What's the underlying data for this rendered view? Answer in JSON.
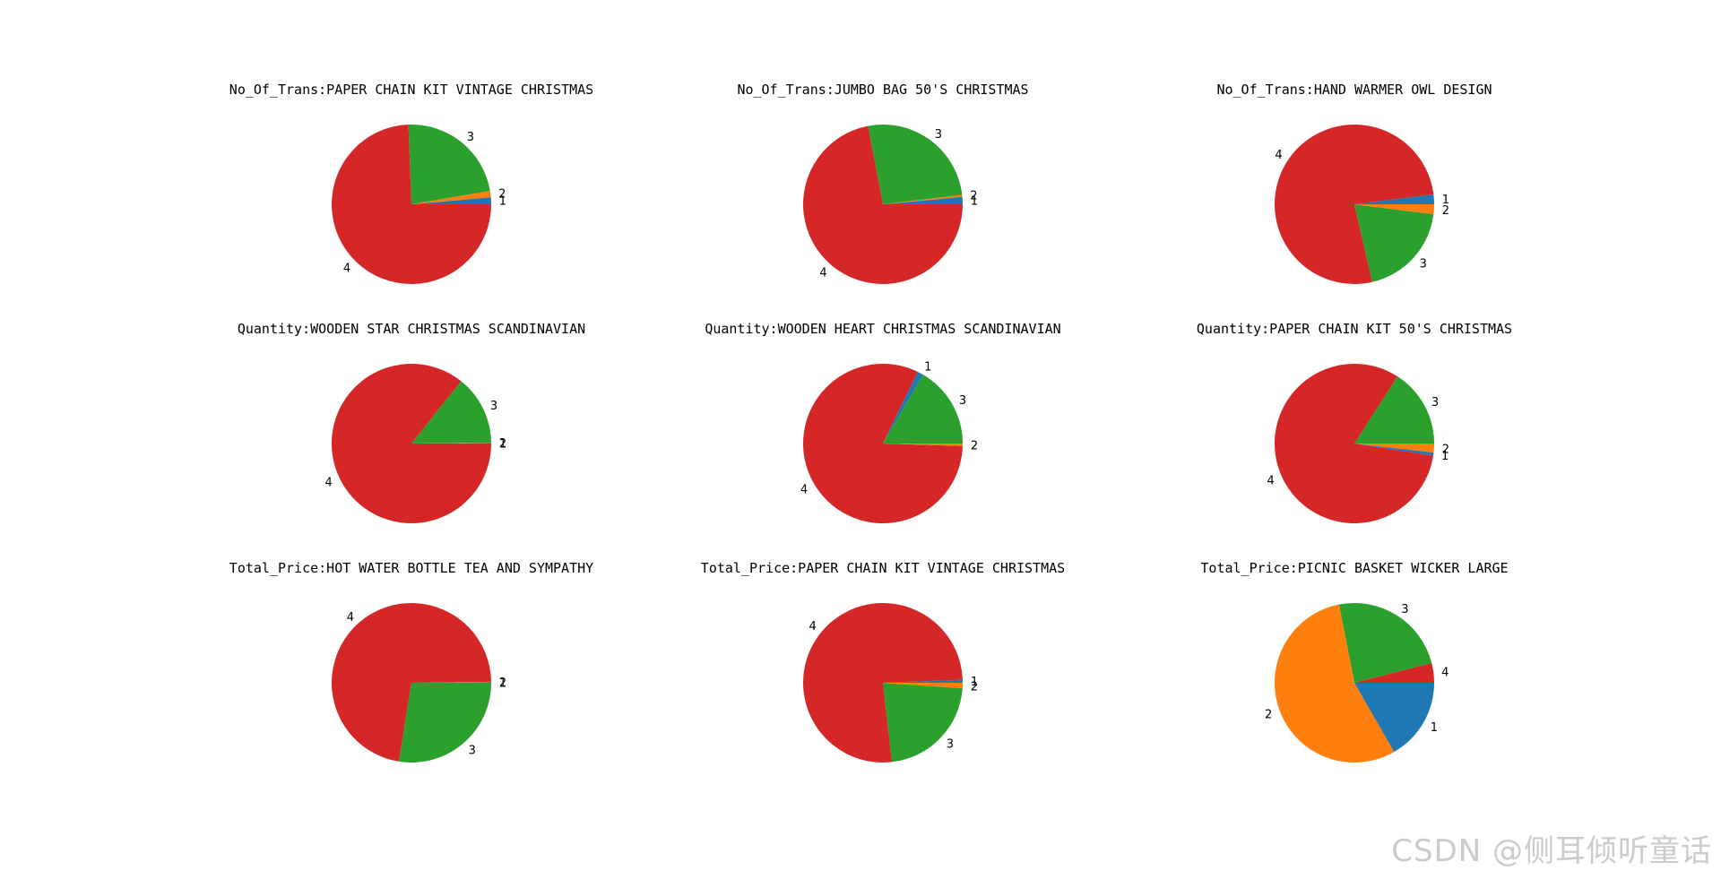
{
  "colors": {
    "1": "#1f77b4",
    "2": "#ff7f0e",
    "3": "#2ca02c",
    "4": "#d62728"
  },
  "watermark": "CSDN @侧耳倾听童话",
  "chart_data": [
    {
      "type": "pie",
      "title": "No_Of_Trans:PAPER CHAIN KIT VINTAGE CHRISTMAS",
      "slices": [
        {
          "label": "1",
          "value": 1.4
        },
        {
          "label": "2",
          "value": 1.3
        },
        {
          "label": "3",
          "value": 22.9
        },
        {
          "label": "4",
          "value": 74.4
        }
      ]
    },
    {
      "type": "pie",
      "title": "No_Of_Trans:JUMBO BAG 50'S CHRISTMAS",
      "slices": [
        {
          "label": "1",
          "value": 1.5
        },
        {
          "label": "2",
          "value": 0.4
        },
        {
          "label": "3",
          "value": 26.1
        },
        {
          "label": "4",
          "value": 72.0
        }
      ]
    },
    {
      "type": "pie",
      "title": "No_Of_Trans:HAND WARMER OWL DESIGN",
      "slices": [
        {
          "label": "1",
          "value": 2.0
        },
        {
          "label": "4",
          "value": 76.6
        },
        {
          "label": "3",
          "value": 19.4
        },
        {
          "label": "2",
          "value": 2.0
        }
      ]
    },
    {
      "type": "pie",
      "title": "Quantity:WOODEN STAR CHRISTMAS SCANDINAVIAN",
      "slices": [
        {
          "label": "1",
          "value": 0.1
        },
        {
          "label": "2",
          "value": 0.1
        },
        {
          "label": "3",
          "value": 14.1
        },
        {
          "label": "4",
          "value": 85.7
        }
      ]
    },
    {
      "type": "pie",
      "title": "Quantity:WOODEN HEART CHRISTMAS SCANDINAVIAN",
      "slices": [
        {
          "label": "3",
          "value": 16.6
        },
        {
          "label": "1",
          "value": 1.2
        },
        {
          "label": "4",
          "value": 81.7
        },
        {
          "label": "2",
          "value": 0.5
        }
      ]
    },
    {
      "type": "pie",
      "title": "Quantity:PAPER CHAIN KIT 50'S CHRISTMAS",
      "slices": [
        {
          "label": "3",
          "value": 15.9
        },
        {
          "label": "4",
          "value": 81.7
        },
        {
          "label": "1",
          "value": 0.6
        },
        {
          "label": "2",
          "value": 1.8
        }
      ]
    },
    {
      "type": "pie",
      "title": "Total_Price:HOT WATER BOTTLE TEA AND SYMPATHY",
      "slices": [
        {
          "label": "1",
          "value": 0.1
        },
        {
          "label": "2",
          "value": 0.1
        },
        {
          "label": "4",
          "value": 72.3
        },
        {
          "label": "3",
          "value": 27.5
        }
      ]
    },
    {
      "type": "pie",
      "title": "Total_Price:PAPER CHAIN KIT VINTAGE CHRISTMAS",
      "slices": [
        {
          "label": "1",
          "value": 0.6
        },
        {
          "label": "4",
          "value": 76.2
        },
        {
          "label": "3",
          "value": 22.1
        },
        {
          "label": "2",
          "value": 1.1
        }
      ]
    },
    {
      "type": "pie",
      "title": "Total_Price:PICNIC BASKET WICKER LARGE",
      "slices": [
        {
          "label": "4",
          "value": 4.0
        },
        {
          "label": "3",
          "value": 24.1
        },
        {
          "label": "2",
          "value": 55.2
        },
        {
          "label": "1",
          "value": 16.7
        }
      ]
    }
  ]
}
